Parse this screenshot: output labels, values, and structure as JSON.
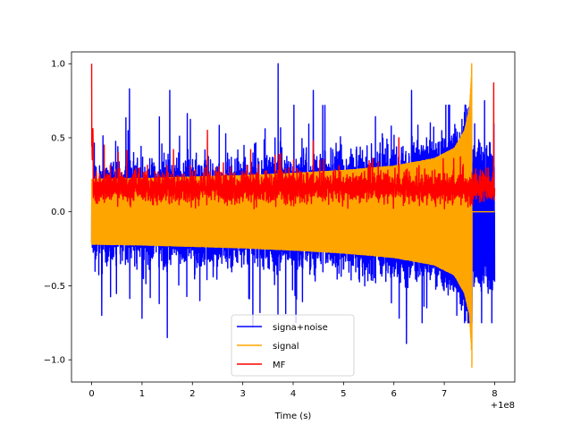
{
  "chart_data": {
    "type": "line",
    "title": "",
    "xlabel": "Time (s)",
    "ylabel": "",
    "x_offset_label": "+1e8",
    "xlim": [
      -0.4,
      8.4
    ],
    "ylim": [
      -1.15,
      1.08
    ],
    "x_ticks": [
      0,
      1,
      2,
      3,
      4,
      5,
      6,
      7,
      8
    ],
    "x_tick_labels": [
      "0",
      "1",
      "2",
      "3",
      "4",
      "5",
      "6",
      "7",
      "8"
    ],
    "y_ticks": [
      1.0,
      0.5,
      0.0,
      -0.5,
      -1.0
    ],
    "y_tick_labels": [
      "1.0",
      "0.5",
      "0.0",
      "−0.5",
      "−1.0"
    ],
    "grid": false,
    "legend_position": "lower-center",
    "series": [
      {
        "name": "signa+noise",
        "color": "#0000ff",
        "description": "noisy time series spanning x 0 to 8, mostly within -0.7 to 0.7 with spikes to about 1.0 and -0.85",
        "x_range": [
          0,
          8
        ],
        "envelope_upper": [
          [
            0,
            0.5
          ],
          [
            1,
            0.55
          ],
          [
            2,
            0.55
          ],
          [
            3,
            0.55
          ],
          [
            4,
            0.55
          ],
          [
            5,
            0.55
          ],
          [
            6,
            0.55
          ],
          [
            7,
            0.55
          ],
          [
            7.55,
            0.55
          ],
          [
            8,
            0.55
          ]
        ],
        "envelope_lower": [
          [
            0,
            -0.62
          ],
          [
            1,
            -0.62
          ],
          [
            2,
            -0.62
          ],
          [
            3,
            -0.62
          ],
          [
            4,
            -0.62
          ],
          [
            5,
            -0.62
          ],
          [
            6,
            -0.62
          ],
          [
            7,
            -0.62
          ],
          [
            7.55,
            -0.7
          ],
          [
            8,
            -0.55
          ]
        ],
        "spikes": [
          [
            3.7,
            1.0
          ],
          [
            0.75,
            0.83
          ],
          [
            1.55,
            0.82
          ],
          [
            4.4,
            0.82
          ],
          [
            6.35,
            0.82
          ],
          [
            7.8,
            0.75
          ],
          [
            0.2,
            -0.7
          ],
          [
            1.5,
            -0.85
          ],
          [
            6.25,
            -0.89
          ],
          [
            1.0,
            -0.72
          ],
          [
            3.2,
            -0.78
          ],
          [
            7.25,
            -0.7
          ]
        ]
      },
      {
        "name": "signal",
        "color": "#ffa500",
        "description": "chirp oscillation from x 0 to 7.55, amplitude rising from 0.22 to 1.0, then flat at 0 until 8",
        "x_range": [
          0,
          8
        ],
        "amplitude_profile": [
          [
            0,
            0.22
          ],
          [
            1,
            0.225
          ],
          [
            2,
            0.235
          ],
          [
            3,
            0.245
          ],
          [
            4,
            0.26
          ],
          [
            5,
            0.28
          ],
          [
            6,
            0.31
          ],
          [
            6.8,
            0.36
          ],
          [
            7.2,
            0.43
          ],
          [
            7.4,
            0.55
          ],
          [
            7.5,
            0.7
          ],
          [
            7.55,
            1.0
          ]
        ],
        "min_value": -1.05,
        "max_value": 1.0,
        "merger_x": 7.55
      },
      {
        "name": "MF",
        "color": "#ff0000",
        "description": "matched filter output, non-negative, mostly 0.05 to 0.35 with peaks",
        "x_range": [
          0,
          8
        ],
        "band": [
          0.05,
          0.32
        ],
        "peaks": [
          [
            0.0,
            1.0
          ],
          [
            7.98,
            0.87
          ],
          [
            2.3,
            0.55
          ],
          [
            0.25,
            0.45
          ],
          [
            4.4,
            0.48
          ],
          [
            6.1,
            0.5
          ]
        ]
      }
    ],
    "legend": {
      "entries": [
        "signa+noise",
        "signal",
        "MF"
      ],
      "colors": [
        "#0000ff",
        "#ffa500",
        "#ff0000"
      ]
    }
  }
}
